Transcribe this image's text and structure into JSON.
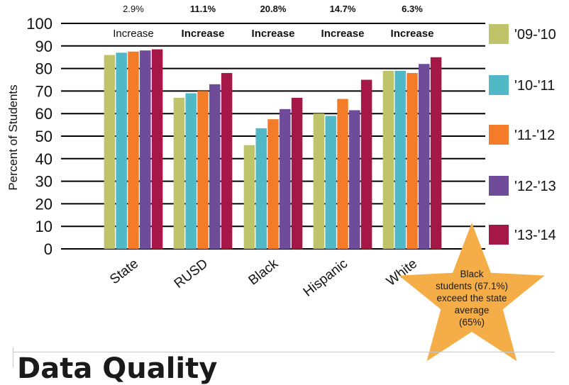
{
  "page": {
    "cropped_heading": "Data Quality"
  },
  "star_note": {
    "lines": [
      "Black",
      "students (67.1%)",
      "exceed the state",
      "average",
      "(65%)"
    ],
    "color": "#F5AE47"
  },
  "chart_data": {
    "type": "bar",
    "title": "",
    "xlabel": "",
    "ylabel": "Percent of Students",
    "ylim": [
      0,
      100
    ],
    "yticks": [
      0,
      10,
      20,
      30,
      40,
      50,
      60,
      70,
      80,
      90,
      100
    ],
    "grid": "horizontal",
    "legend_position": "right",
    "categories": [
      "State",
      "RUSD",
      "Black",
      "Hispanic",
      "White"
    ],
    "series": [
      {
        "name": "'09-'10",
        "color": "#BFC46B",
        "values": [
          86,
          67,
          46,
          60,
          79
        ]
      },
      {
        "name": "'10-'11",
        "color": "#51B8C8",
        "values": [
          87,
          69,
          53.5,
          59,
          79
        ]
      },
      {
        "name": "'11-'12",
        "color": "#F47B28",
        "values": [
          87.5,
          70,
          57.5,
          66.5,
          78
        ]
      },
      {
        "name": "'12-'13",
        "color": "#6E4C99",
        "values": [
          88,
          73,
          62,
          61.5,
          82
        ]
      },
      {
        "name": "'13-'14",
        "color": "#A51747",
        "values": [
          88.5,
          78,
          67,
          75,
          85
        ]
      }
    ],
    "annotations": [
      {
        "pct": "2.9%",
        "label": "Increase",
        "bold": false
      },
      {
        "pct": "11.1%",
        "label": "Increase",
        "bold": true
      },
      {
        "pct": "20.8%",
        "label": "Increase",
        "bold": true
      },
      {
        "pct": "14.7%",
        "label": "Increase",
        "bold": true
      },
      {
        "pct": "6.3%",
        "label": "Increase",
        "bold": true
      }
    ]
  }
}
